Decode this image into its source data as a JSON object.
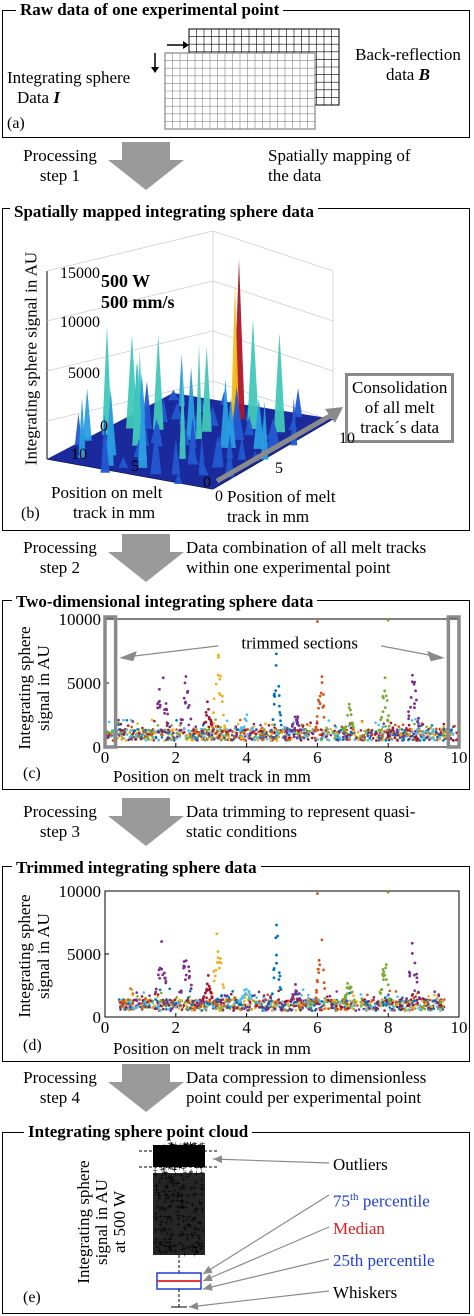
{
  "panel_a": {
    "title": "Raw data of one experimental point",
    "integrating_line1": "Integrating sphere",
    "integrating_line2": "Data ",
    "integrating_var": "I",
    "backref_line1": "Back-reflection",
    "backref_line2": "data ",
    "backref_var": "B",
    "label": "(a)"
  },
  "step1": {
    "line1": "Processing",
    "line2": "step 1",
    "desc1": "Spatially mapping of",
    "desc2": "the data"
  },
  "panel_b": {
    "title": "Spatially mapped integrating sphere data",
    "ylabel": "Integrating sphere signal in AU",
    "zticks": [
      "15000",
      "10000",
      "5000",
      "0"
    ],
    "power": "500 W",
    "speed": "500 mm/s",
    "consolidation1": "Consolidation",
    "consolidation2": "of all melt",
    "consolidation3": "track´s data",
    "left_ticks": [
      "10",
      "5",
      "0"
    ],
    "right_ticks": [
      "0",
      "5",
      "10"
    ],
    "xlabel_left1": "Position on melt",
    "xlabel_left2": "track in mm",
    "xlabel_right1": "Position of melt",
    "xlabel_right2": "track in mm",
    "label": "(b)"
  },
  "step2": {
    "line1": "Processing",
    "line2": "step 2",
    "desc1": "Data combination of all melt tracks",
    "desc2": "within one experimental point"
  },
  "panel_c": {
    "title": "Two-dimensional integrating sphere data",
    "ylabel1": "Integrating sphere",
    "ylabel2": "signal in AU",
    "annotation": "trimmed sections",
    "xlabel": "Position on melt track in mm",
    "label": "(c)"
  },
  "step3": {
    "line1": "Processing",
    "line2": "step 3",
    "desc1": "Data trimming to represent quasi-",
    "desc2": "static conditions"
  },
  "panel_d": {
    "title": "Trimmed integrating sphere data",
    "ylabel1": "Integrating sphere",
    "ylabel2": "signal in AU",
    "xlabel": "Position on melt track in mm",
    "label": "(d)"
  },
  "step4": {
    "line1": "Processing",
    "line2": "step 4",
    "desc1": "Data compression to dimensionless",
    "desc2": "point could per experimental point"
  },
  "panel_e": {
    "title": "Integrating sphere point cloud",
    "ylabel1": "Integrating sphere",
    "ylabel2": "signal in AU",
    "ylabel3": "at 500 W",
    "legend": {
      "outliers": "Outliers",
      "p75_sup": "th",
      "p75_num": "75",
      "p75_rest": " percentile",
      "median": "Median",
      "p25": "25th percentile",
      "whiskers": "Whiskers"
    },
    "label": "(e)"
  },
  "chart_data": [
    {
      "type": "scatter",
      "panel": "c",
      "title": "Two-dimensional integrating sphere data",
      "xlabel": "Position on melt track in mm",
      "ylabel": "Integrating sphere signal in AU",
      "xlim": [
        0,
        10
      ],
      "ylim": [
        0,
        10000
      ],
      "xticks": [
        0,
        2,
        4,
        6,
        8,
        10
      ],
      "yticks": [
        0,
        5000,
        10000
      ],
      "trimmed_sections_mm": [
        [
          0,
          0.3
        ],
        [
          9.7,
          10
        ]
      ]
    },
    {
      "type": "scatter",
      "panel": "d",
      "title": "Trimmed integrating sphere data",
      "xlabel": "Position on melt track in mm",
      "ylabel": "Integrating sphere signal in AU",
      "xlim": [
        0,
        10
      ],
      "ylim": [
        0,
        10000
      ],
      "xticks": [
        0,
        2,
        4,
        6,
        8,
        10
      ],
      "yticks": [
        0,
        5000,
        10000
      ]
    }
  ],
  "colors": {
    "series": [
      "#7b2d8e",
      "#edb120",
      "#0072bd",
      "#d95319",
      "#77ac30",
      "#4dbeee",
      "#a2142f"
    ],
    "arrow": "#9a9a9a",
    "percentile_blue": "#1f3dd6",
    "median_red": "#e02020"
  }
}
